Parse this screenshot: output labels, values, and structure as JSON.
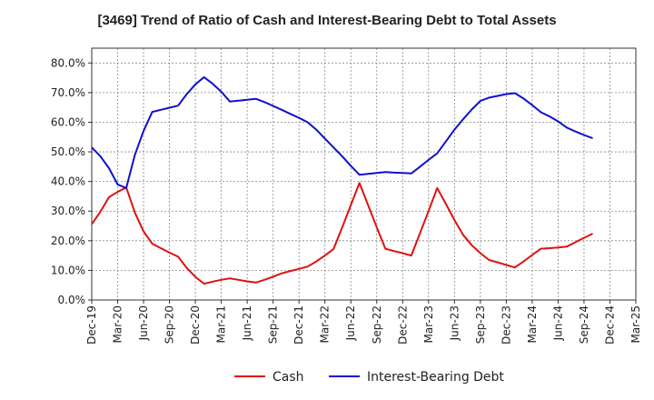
{
  "chart_data": {
    "type": "line",
    "title": "[3469]  Trend of Ratio of Cash and Interest-Bearing Debt to Total Assets",
    "xlabel": "",
    "ylabel": "",
    "ylim": [
      0,
      85
    ],
    "y_ticks": [
      {
        "value": 0,
        "label": "0.0%"
      },
      {
        "value": 10,
        "label": "10.0%"
      },
      {
        "value": 20,
        "label": "20.0%"
      },
      {
        "value": 30,
        "label": "30.0%"
      },
      {
        "value": 40,
        "label": "40.0%"
      },
      {
        "value": 50,
        "label": "50.0%"
      },
      {
        "value": 60,
        "label": "60.0%"
      },
      {
        "value": 70,
        "label": "70.0%"
      },
      {
        "value": 80,
        "label": "80.0%"
      }
    ],
    "x_ticks": [
      "Dec-19",
      "Mar-20",
      "Jun-20",
      "Sep-20",
      "Dec-20",
      "Mar-21",
      "Jun-21",
      "Sep-21",
      "Dec-21",
      "Mar-22",
      "Jun-22",
      "Sep-22",
      "Dec-22",
      "Mar-23",
      "Jun-23",
      "Sep-23",
      "Dec-23",
      "Mar-24",
      "Jun-24",
      "Sep-24",
      "Dec-24",
      "Mar-25"
    ],
    "grid": true,
    "legend_position": "bottom-center",
    "series": [
      {
        "name": "Cash",
        "color": "#dd1111",
        "points": [
          [
            0,
            25.6
          ],
          [
            1,
            29.8
          ],
          [
            2,
            34.7
          ],
          [
            3,
            36.5
          ],
          [
            4,
            38.0
          ],
          [
            5,
            29.5
          ],
          [
            6,
            23.2
          ],
          [
            7,
            19.0
          ],
          [
            8,
            17.5
          ],
          [
            9,
            16.0
          ],
          [
            10,
            14.6
          ],
          [
            11,
            10.8
          ],
          [
            12,
            7.8
          ],
          [
            13,
            5.5
          ],
          [
            14,
            6.2
          ],
          [
            15,
            6.8
          ],
          [
            16,
            7.3
          ],
          [
            17,
            6.8
          ],
          [
            18,
            6.3
          ],
          [
            19,
            5.9
          ],
          [
            20,
            6.8
          ],
          [
            21,
            7.9
          ],
          [
            22,
            9.0
          ],
          [
            23,
            9.8
          ],
          [
            24,
            10.5
          ],
          [
            25,
            11.3
          ],
          [
            26,
            13.0
          ],
          [
            27,
            15.0
          ],
          [
            28,
            17.2
          ],
          [
            29,
            24.5
          ],
          [
            30,
            32.0
          ],
          [
            31,
            39.5
          ],
          [
            32,
            32.0
          ],
          [
            33,
            24.5
          ],
          [
            34,
            17.3
          ],
          [
            35,
            16.5
          ],
          [
            36,
            15.8
          ],
          [
            37,
            15.0
          ],
          [
            38,
            22.5
          ],
          [
            39,
            30.0
          ],
          [
            40,
            37.8
          ],
          [
            41,
            32.5
          ],
          [
            42,
            27.0
          ],
          [
            43,
            22.0
          ],
          [
            44,
            18.5
          ],
          [
            45,
            15.8
          ],
          [
            46,
            13.5
          ],
          [
            47,
            12.7
          ],
          [
            48,
            11.8
          ],
          [
            49,
            11.0
          ],
          [
            50,
            13.0
          ],
          [
            51,
            15.2
          ],
          [
            52,
            17.3
          ],
          [
            53,
            17.5
          ],
          [
            54,
            17.7
          ],
          [
            55,
            18.0
          ],
          [
            56,
            19.5
          ],
          [
            57,
            21.0
          ],
          [
            58,
            22.4
          ]
        ]
      },
      {
        "name": "Interest-Bearing Debt",
        "color": "#1010cc",
        "points": [
          [
            0,
            51.5
          ],
          [
            1,
            48.5
          ],
          [
            2,
            44.5
          ],
          [
            3,
            39.0
          ],
          [
            4,
            37.8
          ],
          [
            5,
            49.0
          ],
          [
            6,
            57.0
          ],
          [
            7,
            63.5
          ],
          [
            8,
            64.2
          ],
          [
            9,
            64.9
          ],
          [
            10,
            65.6
          ],
          [
            11,
            69.5
          ],
          [
            12,
            72.8
          ],
          [
            13,
            75.2
          ],
          [
            14,
            73.0
          ],
          [
            15,
            70.3
          ],
          [
            16,
            67.0
          ],
          [
            17,
            67.3
          ],
          [
            18,
            67.6
          ],
          [
            19,
            67.9
          ],
          [
            20,
            66.8
          ],
          [
            21,
            65.5
          ],
          [
            22,
            64.2
          ],
          [
            23,
            62.8
          ],
          [
            24,
            61.5
          ],
          [
            25,
            60.0
          ],
          [
            26,
            57.5
          ],
          [
            27,
            54.5
          ],
          [
            28,
            51.5
          ],
          [
            29,
            48.5
          ],
          [
            30,
            45.3
          ],
          [
            31,
            42.3
          ],
          [
            32,
            42.6
          ],
          [
            33,
            42.9
          ],
          [
            34,
            43.2
          ],
          [
            35,
            43.0
          ],
          [
            36,
            42.9
          ],
          [
            37,
            42.7
          ],
          [
            38,
            45.0
          ],
          [
            39,
            47.3
          ],
          [
            40,
            49.5
          ],
          [
            41,
            53.5
          ],
          [
            42,
            57.5
          ],
          [
            43,
            61.0
          ],
          [
            44,
            64.3
          ],
          [
            45,
            67.2
          ],
          [
            46,
            68.3
          ],
          [
            47,
            68.9
          ],
          [
            48,
            69.5
          ],
          [
            49,
            69.8
          ],
          [
            50,
            68.0
          ],
          [
            51,
            65.8
          ],
          [
            52,
            63.4
          ],
          [
            53,
            62.0
          ],
          [
            54,
            60.3
          ],
          [
            55,
            58.2
          ],
          [
            56,
            56.9
          ],
          [
            57,
            55.7
          ],
          [
            58,
            54.6
          ]
        ]
      }
    ],
    "x_index_range": [
      0,
      63
    ]
  }
}
